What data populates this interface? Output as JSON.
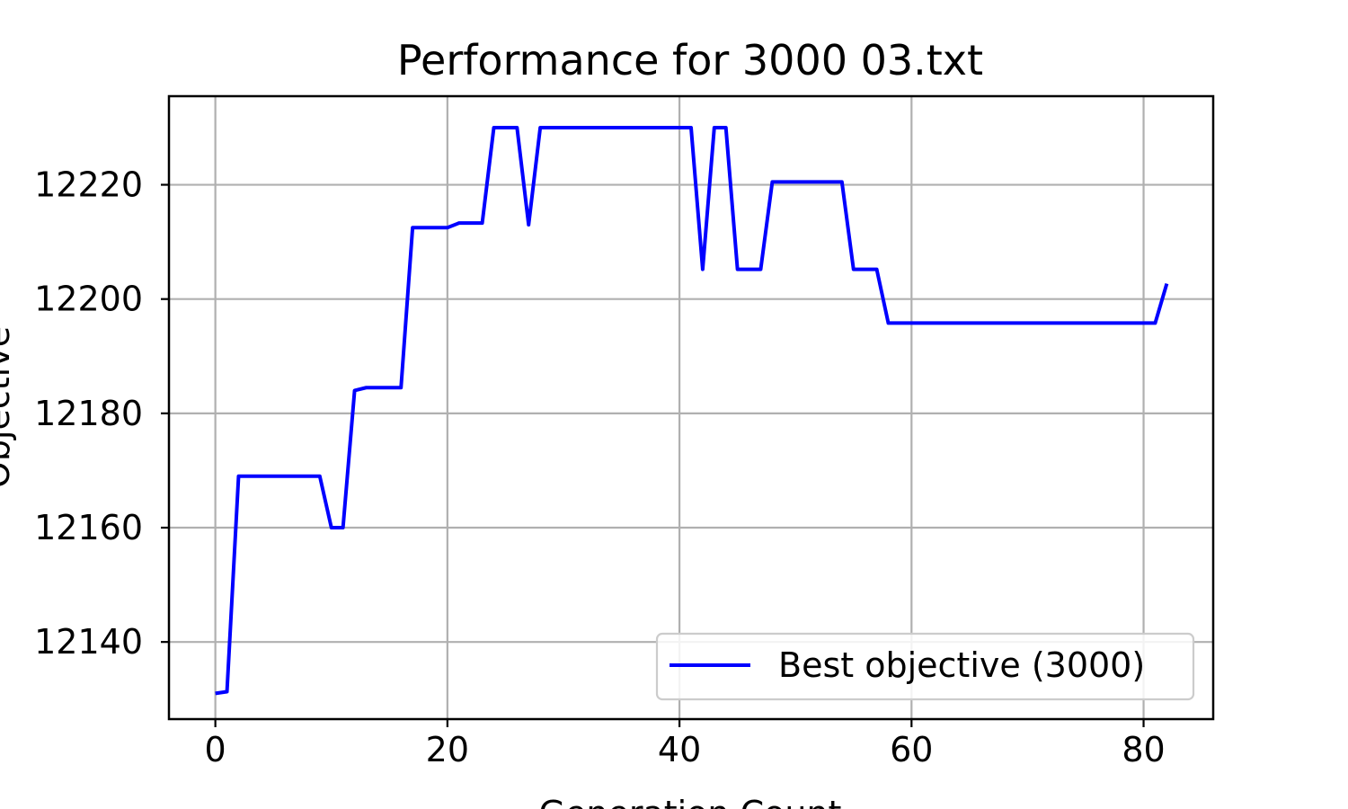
{
  "chart_data": {
    "type": "line",
    "title": "Performance for 3000 03.txt",
    "xlabel": "Generation Count",
    "ylabel": "Objective",
    "xlim": [
      -4,
      86
    ],
    "ylim": [
      12126.5,
      12235.5
    ],
    "xticks": [
      0,
      20,
      40,
      60,
      80
    ],
    "yticks": [
      12140,
      12160,
      12180,
      12200,
      12220
    ],
    "grid": true,
    "legend_position": "lower-right",
    "series": [
      {
        "name": "Best objective (3000)",
        "color": "#0000ff",
        "x": [
          0,
          1,
          2,
          3,
          4,
          5,
          6,
          7,
          8,
          9,
          10,
          11,
          12,
          13,
          14,
          15,
          16,
          17,
          18,
          19,
          20,
          21,
          22,
          23,
          24,
          25,
          26,
          27,
          28,
          29,
          30,
          31,
          32,
          33,
          34,
          35,
          36,
          37,
          38,
          39,
          40,
          41,
          42,
          43,
          44,
          45,
          46,
          47,
          48,
          49,
          50,
          51,
          52,
          53,
          54,
          55,
          56,
          57,
          58,
          59,
          60,
          61,
          62,
          63,
          64,
          65,
          66,
          67,
          68,
          69,
          70,
          71,
          72,
          73,
          74,
          75,
          76,
          77,
          78,
          79,
          80,
          81,
          82
        ],
        "y": [
          12131,
          12131.3,
          12169,
          12169,
          12169,
          12169,
          12169,
          12169,
          12169,
          12169,
          12160,
          12160,
          12184,
          12184.5,
          12184.5,
          12184.5,
          12184.5,
          12212.5,
          12212.5,
          12212.5,
          12212.5,
          12213.3,
          12213.3,
          12213.3,
          12230,
          12230,
          12230,
          12213,
          12230,
          12230,
          12230,
          12230,
          12230,
          12230,
          12230,
          12230,
          12230,
          12230,
          12230,
          12230,
          12230,
          12230,
          12205.2,
          12230,
          12230,
          12205.2,
          12205.2,
          12205.2,
          12220.5,
          12220.5,
          12220.5,
          12220.5,
          12220.5,
          12220.5,
          12220.5,
          12205.2,
          12205.2,
          12205.2,
          12195.8,
          12195.8,
          12195.8,
          12195.8,
          12195.8,
          12195.8,
          12195.8,
          12195.8,
          12195.8,
          12195.8,
          12195.8,
          12195.8,
          12195.8,
          12195.8,
          12195.8,
          12195.8,
          12195.8,
          12195.8,
          12195.8,
          12195.8,
          12195.8,
          12195.8,
          12195.8,
          12195.8,
          12202.7
        ]
      }
    ]
  }
}
